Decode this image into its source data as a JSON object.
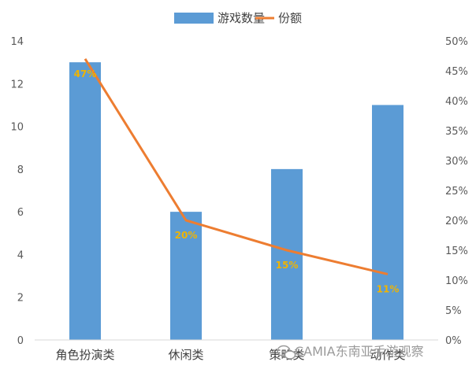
{
  "chart_data": {
    "type": "bar+line",
    "categories": [
      "角色扮演类",
      "休闲类",
      "策略类",
      "动作类"
    ],
    "series": [
      {
        "name": "游戏数量",
        "type": "bar",
        "axis": "left",
        "values": [
          13,
          6,
          8,
          11
        ],
        "color": "#5b9bd5"
      },
      {
        "name": "份额",
        "type": "line",
        "axis": "right",
        "values": [
          0.47,
          0.2,
          0.15,
          0.11
        ],
        "labels": [
          "47%",
          "20%",
          "15%",
          "11%"
        ],
        "color": "#ed7d31"
      }
    ],
    "y_left": {
      "lim": [
        0,
        14
      ],
      "ticks": [
        "0",
        "2",
        "4",
        "6",
        "8",
        "10",
        "12",
        "14"
      ]
    },
    "y_right": {
      "lim": [
        0,
        0.5
      ],
      "ticks": [
        "0%",
        "5%",
        "10%",
        "15%",
        "20%",
        "25%",
        "30%",
        "35%",
        "40%",
        "45%",
        "50%"
      ]
    },
    "legend": {
      "position": "top",
      "items": [
        "游戏数量",
        "份额"
      ]
    },
    "data_label_color": "#f0b400",
    "grid": false
  },
  "watermark": {
    "text": "CAMIA东南亚手游观察",
    "icon": "wechat-icon"
  }
}
